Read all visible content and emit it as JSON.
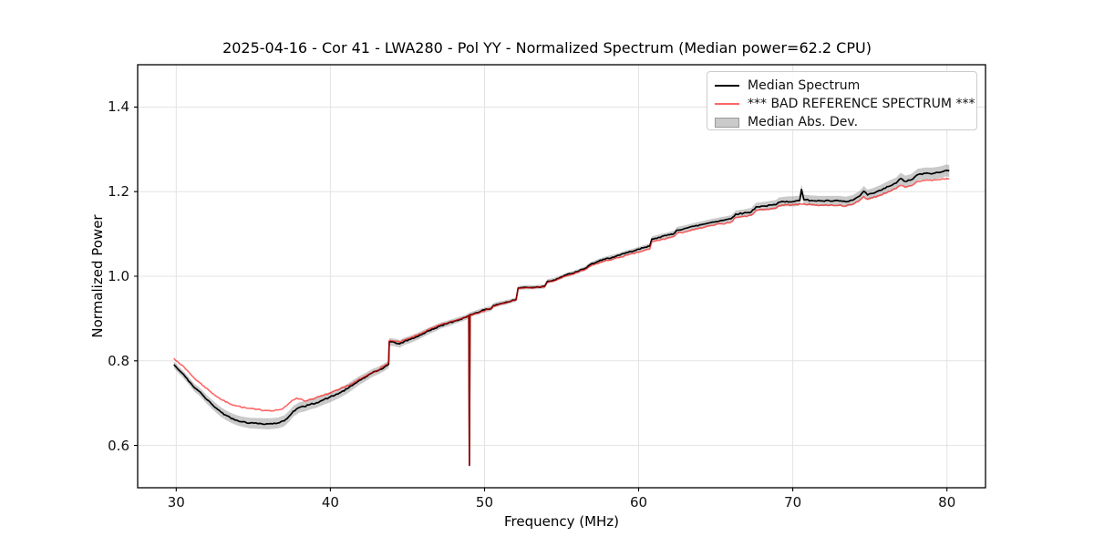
{
  "chart_data": {
    "type": "line",
    "title": "2025-04-16 - Cor 41 - LWA280 - Pol YY - Normalized Spectrum (Median power=62.2 CPU)",
    "median_power_cpu": 62.2,
    "xlabel": "Frequency (MHz)",
    "ylabel": "Normalized Power",
    "xlim": [
      27.5,
      82.5
    ],
    "ylim": [
      0.5,
      1.5
    ],
    "xticks": [
      30,
      40,
      50,
      60,
      70,
      80
    ],
    "xtick_labels": [
      "30",
      "40",
      "50",
      "60",
      "70",
      "80"
    ],
    "yticks": [
      0.6,
      0.8,
      1.0,
      1.2,
      1.4
    ],
    "ytick_labels": [
      "0.6",
      "0.8",
      "1.0",
      "1.2",
      "1.4"
    ],
    "grid": true,
    "legend_position": "upper right",
    "colors": {
      "median": "#000000",
      "reference": "#ff0000",
      "reference_opacity": 0.6,
      "reference_flat": "#ff6666",
      "band_fill": "#808080",
      "band_opacity": 0.42,
      "grid": "#e3e3e3",
      "frame": "#000000"
    },
    "series": [
      {
        "name": "Median Spectrum",
        "kind": "line",
        "color": "#000000",
        "points": [
          [
            29.85,
            0.791
          ],
          [
            30.1,
            0.781
          ],
          [
            30.35,
            0.772
          ],
          [
            30.6,
            0.762
          ],
          [
            30.9,
            0.749
          ],
          [
            31.2,
            0.736
          ],
          [
            31.45,
            0.729
          ],
          [
            31.7,
            0.72
          ],
          [
            32.0,
            0.708
          ],
          [
            32.3,
            0.698
          ],
          [
            32.6,
            0.688
          ],
          [
            32.9,
            0.679
          ],
          [
            33.2,
            0.672
          ],
          [
            33.5,
            0.666
          ],
          [
            33.9,
            0.66
          ],
          [
            34.3,
            0.656
          ],
          [
            34.8,
            0.653
          ],
          [
            35.4,
            0.652
          ],
          [
            36.0,
            0.651
          ],
          [
            36.6,
            0.653
          ],
          [
            37.0,
            0.658
          ],
          [
            37.3,
            0.668
          ],
          [
            37.6,
            0.681
          ],
          [
            38.0,
            0.69
          ],
          [
            38.3,
            0.692
          ],
          [
            38.7,
            0.697
          ],
          [
            39.1,
            0.701
          ],
          [
            39.5,
            0.707
          ],
          [
            39.9,
            0.713
          ],
          [
            40.3,
            0.719
          ],
          [
            40.7,
            0.726
          ],
          [
            41.1,
            0.734
          ],
          [
            41.5,
            0.744
          ],
          [
            41.9,
            0.754
          ],
          [
            42.3,
            0.762
          ],
          [
            42.7,
            0.771
          ],
          [
            43.1,
            0.777
          ],
          [
            43.5,
            0.785
          ],
          [
            43.78,
            0.792
          ],
          [
            43.82,
            0.845
          ],
          [
            44.2,
            0.843
          ],
          [
            44.5,
            0.84
          ],
          [
            44.8,
            0.846
          ],
          [
            45.2,
            0.851
          ],
          [
            45.6,
            0.857
          ],
          [
            46.0,
            0.864
          ],
          [
            46.4,
            0.871
          ],
          [
            46.8,
            0.877
          ],
          [
            47.2,
            0.884
          ],
          [
            47.6,
            0.888
          ],
          [
            48.0,
            0.893
          ],
          [
            48.4,
            0.898
          ],
          [
            48.8,
            0.903
          ],
          [
            48.98,
            0.907
          ],
          [
            49.02,
            0.553
          ],
          [
            49.06,
            0.909
          ],
          [
            49.4,
            0.913
          ],
          [
            49.8,
            0.918
          ],
          [
            50.2,
            0.922
          ],
          [
            50.45,
            0.924
          ],
          [
            50.58,
            0.931
          ],
          [
            51.0,
            0.935
          ],
          [
            51.5,
            0.939
          ],
          [
            52.05,
            0.945
          ],
          [
            52.18,
            0.972
          ],
          [
            52.7,
            0.974
          ],
          [
            53.3,
            0.974
          ],
          [
            53.9,
            0.976
          ],
          [
            54.08,
            0.988
          ],
          [
            54.5,
            0.991
          ],
          [
            54.9,
            0.997
          ],
          [
            55.3,
            1.003
          ],
          [
            55.7,
            1.007
          ],
          [
            56.1,
            1.012
          ],
          [
            56.5,
            1.018
          ],
          [
            56.88,
            1.028
          ],
          [
            57.3,
            1.034
          ],
          [
            57.8,
            1.04
          ],
          [
            58.3,
            1.045
          ],
          [
            58.8,
            1.05
          ],
          [
            59.3,
            1.056
          ],
          [
            59.8,
            1.061
          ],
          [
            60.3,
            1.067
          ],
          [
            60.72,
            1.071
          ],
          [
            60.85,
            1.088
          ],
          [
            61.3,
            1.092
          ],
          [
            61.8,
            1.096
          ],
          [
            62.3,
            1.101
          ],
          [
            62.48,
            1.109
          ],
          [
            63.0,
            1.113
          ],
          [
            63.6,
            1.118
          ],
          [
            64.2,
            1.123
          ],
          [
            64.8,
            1.128
          ],
          [
            65.4,
            1.132
          ],
          [
            66.0,
            1.136
          ],
          [
            66.3,
            1.147
          ],
          [
            66.8,
            1.149
          ],
          [
            67.3,
            1.152
          ],
          [
            67.62,
            1.164
          ],
          [
            68.2,
            1.166
          ],
          [
            68.9,
            1.169
          ],
          [
            69.1,
            1.175
          ],
          [
            69.6,
            1.177
          ],
          [
            70.1,
            1.177
          ],
          [
            70.45,
            1.179
          ],
          [
            70.56,
            1.205
          ],
          [
            70.72,
            1.181
          ],
          [
            71.2,
            1.179
          ],
          [
            71.8,
            1.178
          ],
          [
            72.4,
            1.178
          ],
          [
            73.0,
            1.178
          ],
          [
            73.45,
            1.176
          ],
          [
            73.9,
            1.18
          ],
          [
            74.35,
            1.19
          ],
          [
            74.6,
            1.201
          ],
          [
            74.85,
            1.192
          ],
          [
            75.2,
            1.196
          ],
          [
            75.7,
            1.203
          ],
          [
            76.2,
            1.212
          ],
          [
            76.7,
            1.22
          ],
          [
            77.0,
            1.231
          ],
          [
            77.3,
            1.224
          ],
          [
            77.7,
            1.228
          ],
          [
            78.1,
            1.24
          ],
          [
            78.6,
            1.243
          ],
          [
            79.1,
            1.243
          ],
          [
            79.6,
            1.246
          ],
          [
            79.95,
            1.25
          ],
          [
            80.15,
            1.249
          ]
        ]
      },
      {
        "name": "*** BAD REFERENCE SPECTRUM ***",
        "kind": "line",
        "color": "#ff0000",
        "opacity": 0.6,
        "points": [
          [
            29.85,
            0.806
          ],
          [
            30.1,
            0.798
          ],
          [
            30.35,
            0.79
          ],
          [
            30.6,
            0.781
          ],
          [
            30.9,
            0.77
          ],
          [
            31.2,
            0.758
          ],
          [
            31.5,
            0.749
          ],
          [
            31.8,
            0.74
          ],
          [
            32.1,
            0.731
          ],
          [
            32.4,
            0.722
          ],
          [
            32.7,
            0.714
          ],
          [
            33.0,
            0.707
          ],
          [
            33.4,
            0.7
          ],
          [
            33.8,
            0.695
          ],
          [
            34.2,
            0.691
          ],
          [
            34.6,
            0.688
          ],
          [
            35.2,
            0.685
          ],
          [
            35.8,
            0.683
          ],
          [
            36.4,
            0.683
          ],
          [
            36.9,
            0.686
          ],
          [
            37.2,
            0.695
          ],
          [
            37.5,
            0.706
          ],
          [
            37.8,
            0.712
          ],
          [
            38.05,
            0.71
          ],
          [
            38.3,
            0.705
          ],
          [
            38.6,
            0.708
          ],
          [
            39.0,
            0.712
          ],
          [
            39.5,
            0.718
          ],
          [
            40.0,
            0.724
          ],
          [
            40.5,
            0.731
          ],
          [
            41.0,
            0.739
          ],
          [
            41.5,
            0.748
          ],
          [
            42.0,
            0.758
          ],
          [
            42.5,
            0.768
          ],
          [
            43.0,
            0.777
          ],
          [
            43.5,
            0.788
          ],
          [
            43.78,
            0.796
          ],
          [
            43.82,
            0.848
          ],
          [
            44.2,
            0.846
          ],
          [
            44.5,
            0.844
          ],
          [
            44.8,
            0.849
          ],
          [
            45.2,
            0.854
          ],
          [
            45.6,
            0.86
          ],
          [
            46.0,
            0.867
          ],
          [
            46.4,
            0.874
          ],
          [
            46.8,
            0.88
          ],
          [
            47.2,
            0.886
          ],
          [
            47.6,
            0.89
          ],
          [
            48.0,
            0.894
          ],
          [
            48.4,
            0.899
          ],
          [
            48.8,
            0.904
          ],
          [
            48.98,
            0.907
          ],
          [
            49.02,
            0.554
          ],
          [
            49.06,
            0.908
          ],
          [
            49.4,
            0.912
          ],
          [
            49.8,
            0.917
          ],
          [
            50.2,
            0.921
          ],
          [
            50.45,
            0.923
          ],
          [
            50.58,
            0.93
          ],
          [
            51.0,
            0.934
          ],
          [
            51.5,
            0.938
          ],
          [
            52.05,
            0.944
          ],
          [
            52.18,
            0.971
          ],
          [
            52.7,
            0.973
          ],
          [
            53.3,
            0.973
          ],
          [
            53.9,
            0.975
          ],
          [
            54.08,
            0.986
          ],
          [
            54.5,
            0.989
          ],
          [
            54.9,
            0.995
          ],
          [
            55.3,
            1.001
          ],
          [
            55.7,
            1.005
          ],
          [
            56.1,
            1.01
          ],
          [
            56.5,
            1.015
          ],
          [
            56.88,
            1.024
          ],
          [
            57.3,
            1.03
          ],
          [
            57.8,
            1.036
          ],
          [
            58.3,
            1.04
          ],
          [
            58.8,
            1.045
          ],
          [
            59.3,
            1.05
          ],
          [
            59.8,
            1.055
          ],
          [
            60.3,
            1.06
          ],
          [
            60.72,
            1.064
          ],
          [
            60.85,
            1.081
          ],
          [
            61.3,
            1.085
          ],
          [
            61.8,
            1.089
          ],
          [
            62.3,
            1.094
          ],
          [
            62.48,
            1.101
          ],
          [
            63.0,
            1.105
          ],
          [
            63.6,
            1.11
          ],
          [
            64.2,
            1.115
          ],
          [
            64.8,
            1.12
          ],
          [
            65.4,
            1.124
          ],
          [
            66.0,
            1.128
          ],
          [
            66.3,
            1.139
          ],
          [
            66.8,
            1.141
          ],
          [
            67.3,
            1.144
          ],
          [
            67.62,
            1.156
          ],
          [
            68.2,
            1.158
          ],
          [
            68.9,
            1.161
          ],
          [
            69.1,
            1.167
          ],
          [
            69.6,
            1.169
          ],
          [
            70.1,
            1.169
          ],
          [
            70.72,
            1.171
          ],
          [
            71.2,
            1.169
          ],
          [
            71.8,
            1.168
          ],
          [
            72.4,
            1.168
          ],
          [
            73.0,
            1.168
          ],
          [
            73.45,
            1.166
          ],
          [
            73.9,
            1.17
          ],
          [
            74.35,
            1.18
          ],
          [
            74.6,
            1.188
          ],
          [
            74.85,
            1.182
          ],
          [
            75.2,
            1.186
          ],
          [
            75.7,
            1.192
          ],
          [
            76.2,
            1.2
          ],
          [
            76.7,
            1.207
          ],
          [
            77.0,
            1.215
          ],
          [
            77.3,
            1.21
          ],
          [
            77.7,
            1.214
          ],
          [
            78.1,
            1.224
          ],
          [
            78.6,
            1.227
          ],
          [
            79.1,
            1.227
          ],
          [
            79.6,
            1.229
          ],
          [
            79.95,
            1.231
          ],
          [
            80.15,
            1.23
          ]
        ]
      },
      {
        "name": "Median Abs. Dev.",
        "kind": "band",
        "around": "Median Spectrum",
        "x": [
          29.85,
          31,
          32.5,
          34,
          35.5,
          37,
          38.5,
          40,
          41.5,
          43,
          44.5,
          46,
          47.5,
          49,
          50.5,
          52,
          54,
          56,
          58,
          60,
          62,
          64,
          66,
          68,
          70,
          72,
          74,
          76,
          78,
          80.15
        ],
        "halfwidth": [
          0.008,
          0.009,
          0.011,
          0.012,
          0.013,
          0.013,
          0.012,
          0.012,
          0.011,
          0.009,
          0.009,
          0.008,
          0.007,
          0.006,
          0.006,
          0.005,
          0.005,
          0.005,
          0.006,
          0.006,
          0.007,
          0.008,
          0.008,
          0.01,
          0.012,
          0.012,
          0.012,
          0.013,
          0.014,
          0.014
        ]
      }
    ]
  }
}
